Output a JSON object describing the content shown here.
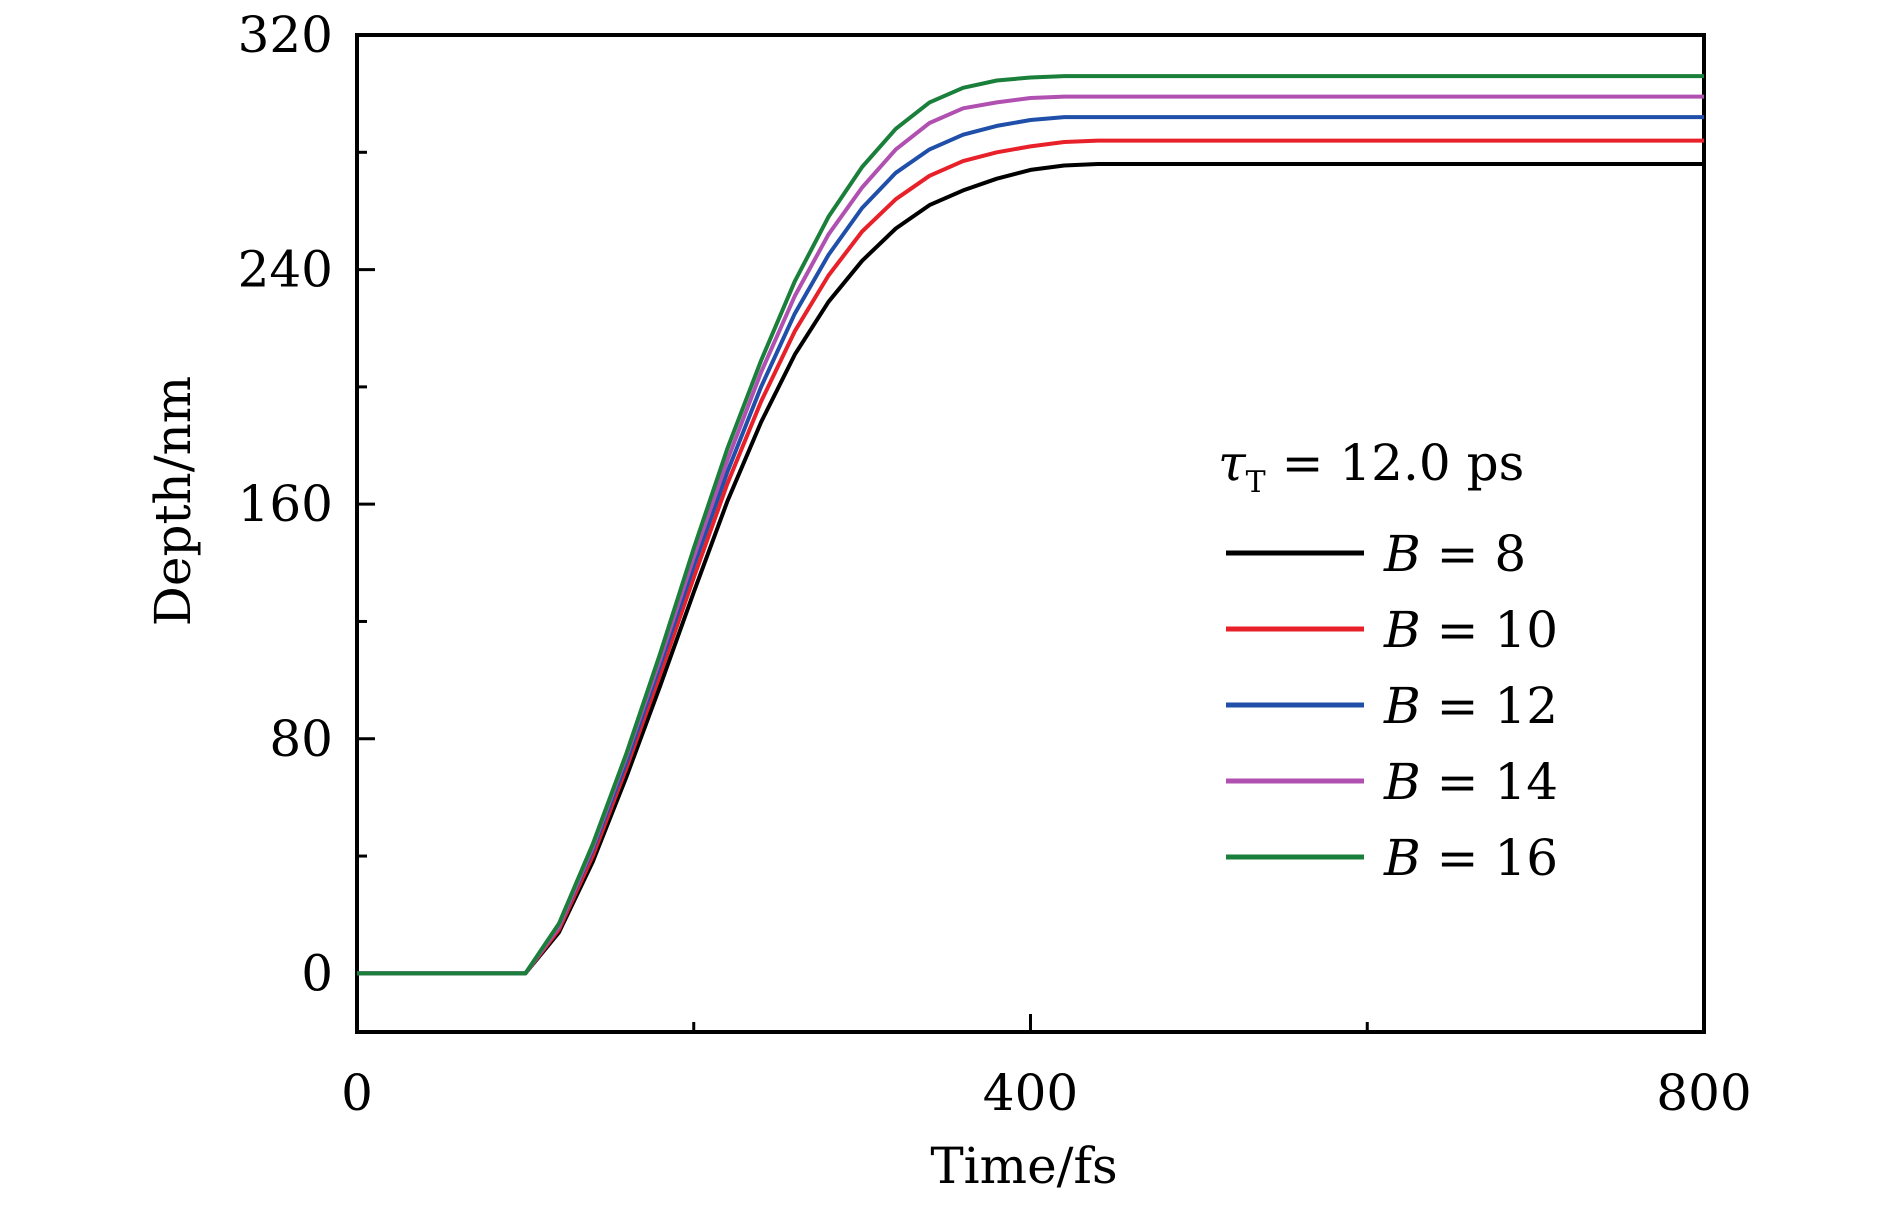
{
  "chart_data": {
    "type": "line",
    "title": "",
    "xlabel": "Time/fs",
    "ylabel": "Depth/nm",
    "xlim": [
      0,
      800
    ],
    "ylim": [
      -20,
      320
    ],
    "xticks": [
      0,
      400,
      800
    ],
    "xtick_labels": [
      "0",
      "400",
      "800"
    ],
    "xminor": [
      200,
      600
    ],
    "yticks": [
      0,
      80,
      160,
      240,
      320
    ],
    "ytick_labels": [
      "0",
      "80",
      "160",
      "240",
      "320"
    ],
    "yminor": [
      40,
      120,
      200,
      280
    ],
    "grid": false,
    "legend": {
      "placement": "right",
      "title_symbol": "τ",
      "title_subscript": "T",
      "title_rest": " = 12.0  ps"
    },
    "x": [
      0,
      100,
      120,
      140,
      160,
      180,
      200,
      220,
      240,
      260,
      280,
      300,
      320,
      340,
      360,
      380,
      400,
      420,
      440,
      460,
      480,
      500,
      600,
      700,
      800
    ],
    "series": [
      {
        "name": "B = 8",
        "var": "B",
        "value": "8",
        "color": "#000000",
        "values": [
          0,
          0,
          14,
          38,
          67,
          98,
          130,
          161,
          188,
          211,
          229,
          243,
          254,
          262,
          267,
          271,
          274,
          275.5,
          276,
          276,
          276,
          276,
          276,
          276,
          276
        ]
      },
      {
        "name": "B = 10",
        "var": "B",
        "value": "10",
        "color": "#e8202a",
        "values": [
          0,
          0,
          15,
          40,
          70,
          102,
          135,
          167,
          195,
          219,
          238,
          253,
          264,
          272,
          277,
          280,
          282,
          283.5,
          284,
          284,
          284,
          284,
          284,
          284,
          284
        ]
      },
      {
        "name": "B = 12",
        "var": "B",
        "value": "12",
        "color": "#1f4fa8",
        "values": [
          0,
          0,
          16,
          42,
          72,
          105,
          139,
          171,
          200,
          225,
          245,
          261,
          273,
          281,
          286,
          289,
          291,
          292,
          292,
          292,
          292,
          292,
          292,
          292,
          292
        ]
      },
      {
        "name": "B = 14",
        "var": "B",
        "value": "14",
        "color": "#b050b0",
        "values": [
          0,
          0,
          16,
          43,
          74,
          107,
          142,
          175,
          205,
          231,
          252,
          268,
          281,
          290,
          295,
          297,
          298.5,
          299,
          299,
          299,
          299,
          299,
          299,
          299,
          299
        ]
      },
      {
        "name": "B = 16",
        "var": "B",
        "value": "16",
        "color": "#1a7f3a",
        "values": [
          0,
          0,
          17,
          44,
          75,
          109,
          145,
          179,
          209,
          236,
          258,
          275,
          288,
          297,
          302,
          304.5,
          305.5,
          306,
          306,
          306,
          306,
          306,
          306,
          306,
          306
        ]
      }
    ]
  }
}
